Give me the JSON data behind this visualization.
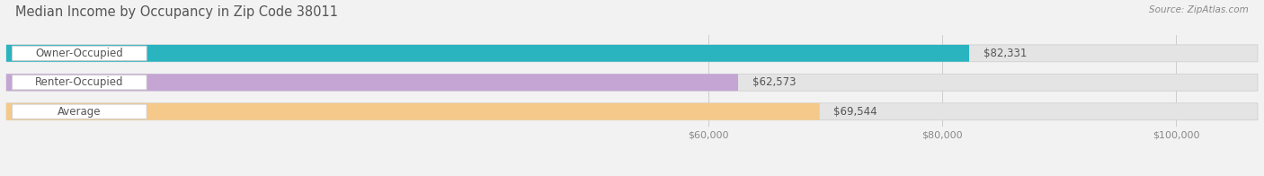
{
  "title": "Median Income by Occupancy in Zip Code 38011",
  "source": "Source: ZipAtlas.com",
  "categories": [
    "Owner-Occupied",
    "Renter-Occupied",
    "Average"
  ],
  "values": [
    82331,
    62573,
    69544
  ],
  "bar_colors": [
    "#29b4c0",
    "#c4a5d4",
    "#f5c98a"
  ],
  "value_labels": [
    "$82,331",
    "$62,573",
    "$69,544"
  ],
  "xlim_min": 0,
  "xlim_max": 107000,
  "xtick_values": [
    60000,
    80000,
    100000
  ],
  "xtick_labels": [
    "$60,000",
    "$80,000",
    "$100,000"
  ],
  "background_color": "#f2f2f2",
  "bar_bg_color": "#e4e4e4",
  "title_fontsize": 10.5,
  "source_fontsize": 7.5,
  "label_fontsize": 8.5,
  "value_fontsize": 8.5,
  "tick_fontsize": 8
}
